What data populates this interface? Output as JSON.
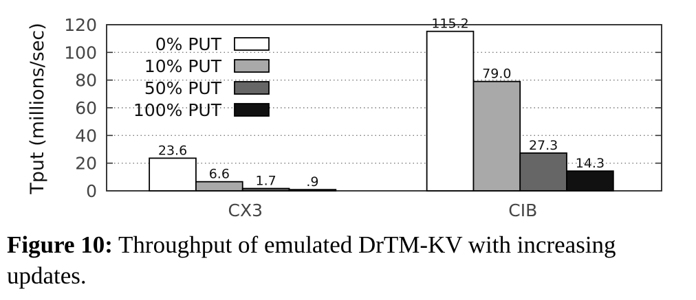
{
  "chart_data": {
    "type": "bar",
    "ylabel": "Tput (millions/sec)",
    "ylim": [
      0,
      120
    ],
    "yticks": [
      0,
      20,
      40,
      60,
      80,
      100,
      120
    ],
    "grid": true,
    "legend_position": "top-left",
    "categories": [
      "CX3",
      "CIB"
    ],
    "series": [
      {
        "name": "0% PUT",
        "color": "#ffffff",
        "values": [
          23.6,
          115.2
        ],
        "labels": [
          "23.6",
          "115.2"
        ]
      },
      {
        "name": "10% PUT",
        "color": "#a9a9a9",
        "values": [
          6.6,
          79.0
        ],
        "labels": [
          "6.6",
          "79.0"
        ]
      },
      {
        "name": "50% PUT",
        "color": "#666666",
        "values": [
          1.7,
          27.3
        ],
        "labels": [
          "1.7",
          "27.3"
        ]
      },
      {
        "name": "100% PUT",
        "color": "#111111",
        "values": [
          0.9,
          14.3
        ],
        "labels": [
          ".9",
          "14.3"
        ]
      }
    ]
  },
  "caption": {
    "label": "Figure 10:",
    "text": " Throughput of emulated DrTM-KV with increasing updates."
  }
}
